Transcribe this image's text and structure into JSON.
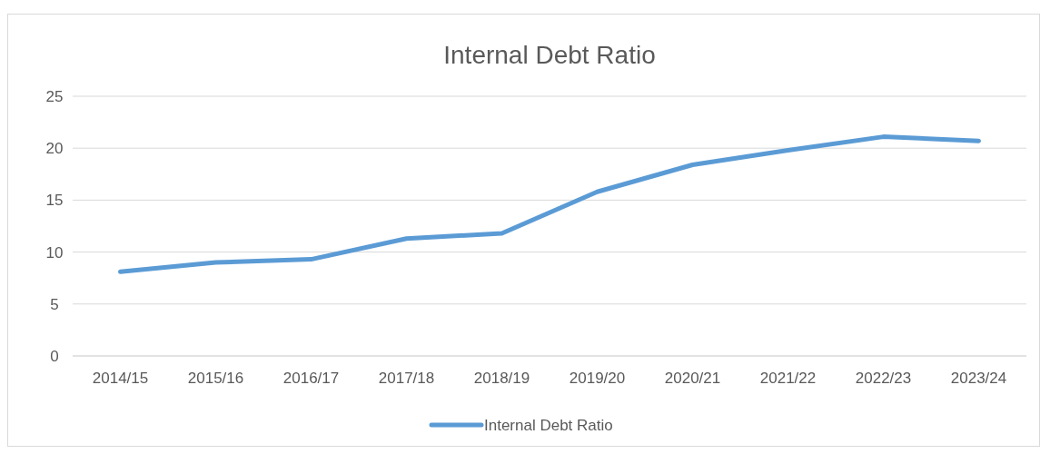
{
  "chart_data": {
    "type": "line",
    "title": "Internal Debt Ratio",
    "categories": [
      "2014/15",
      "2015/16",
      "2016/17",
      "2017/18",
      "2018/19",
      "2019/20",
      "2020/21",
      "2021/22",
      "2022/23",
      "2023/24"
    ],
    "series": [
      {
        "name": "Internal Debt Ratio",
        "color": "#5b9bd5",
        "values": [
          8.1,
          9.0,
          9.3,
          11.3,
          11.8,
          15.8,
          18.4,
          19.8,
          21.1,
          20.7
        ]
      }
    ],
    "ylim": [
      0,
      25
    ],
    "yticks": [
      0,
      5,
      10,
      15,
      20,
      25
    ],
    "grid": "y",
    "legend": "bottom",
    "marker": "none"
  }
}
